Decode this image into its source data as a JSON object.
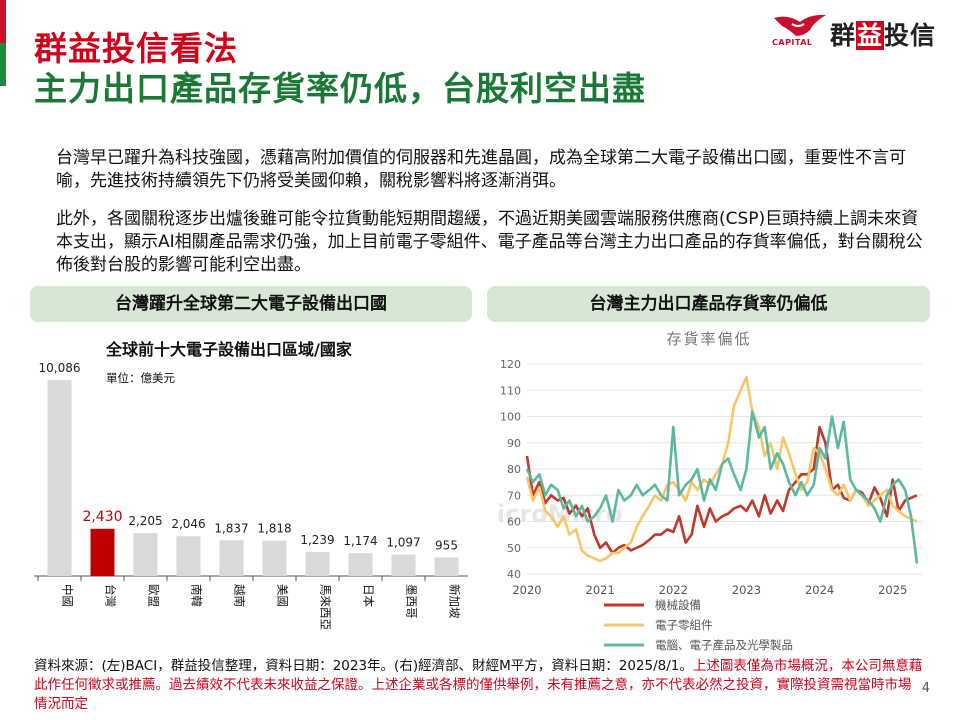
{
  "header": {
    "title_line1": "群益投信看法",
    "title_line2": "主力出口產品存貨率仍低，台股利空出盡",
    "logo_text_a": "群",
    "logo_text_b": "益",
    "logo_text_c": "投信",
    "logo_caption": "CAPITAL",
    "accent_colors": {
      "red": "#c8102e",
      "green": "#1e8a3c"
    }
  },
  "body": {
    "paragraph1": "台灣早已躍升為科技強國，憑藉高附加價值的伺服器和先進晶圓，成為全球第二大電子設備出口國，重要性不言可喻，先進技術持續領先下仍將受美國仰賴，關稅影響料將逐漸消弭。",
    "paragraph2": "此外，各國關稅逐步出爐後雖可能令拉貨動能短期間趨緩，不過近期美國雲端服務供應商(CSP)巨頭持續上調未來資本支出，顯示AI相關產品需求仍強，加上目前電子零組件、電子產品等台灣主力出口產品的存貨率偏低，對台關稅公佈後對台股的影響可能利空出盡。"
  },
  "left_panel": {
    "heading": "台灣躍升全球第二大電子設備出口國"
  },
  "right_panel": {
    "heading": "台灣主力出口產品存貨率仍偏低"
  },
  "chart_data": [
    {
      "type": "bar",
      "title": "全球前十大電子設備出口區域/國家",
      "subtitle": "單位：億美元",
      "categories": [
        "中國",
        "台灣",
        "歐盟",
        "南韓",
        "越南",
        "美國",
        "馬來西亞",
        "日本",
        "墨西哥",
        "新加坡"
      ],
      "values": [
        10086,
        2430,
        2205,
        2046,
        1837,
        1818,
        1239,
        1174,
        1097,
        955
      ],
      "value_labels": [
        "10,086",
        "2,430",
        "2,205",
        "2,046",
        "1,837",
        "1,818",
        "1,239",
        "1,174",
        "1,097",
        "955"
      ],
      "highlight_index": 1,
      "colors": {
        "bar": "#d9d9d9",
        "highlight": "#c00000",
        "highlight_label": "#c00000"
      },
      "ylim": [
        0,
        10086
      ]
    },
    {
      "type": "line",
      "title": "存貨率偏低",
      "xlabel": "",
      "ylabel": "",
      "ylim": [
        40,
        120
      ],
      "y_ticks": [
        40,
        50,
        60,
        70,
        80,
        90,
        100,
        110,
        120
      ],
      "x_range": [
        2020.0,
        2025.4
      ],
      "x_ticks": [
        2020,
        2021,
        2022,
        2023,
        2024,
        2025
      ],
      "grid": true,
      "watermark": "icroMicro",
      "legend_position": "bottom",
      "series": [
        {
          "name": "機械設備",
          "color": "#c0392b",
          "x": [
            2020.0,
            2020.08,
            2020.17,
            2020.25,
            2020.33,
            2020.42,
            2020.5,
            2020.58,
            2020.67,
            2020.75,
            2020.83,
            2020.92,
            2021.0,
            2021.08,
            2021.17,
            2021.25,
            2021.33,
            2021.42,
            2021.5,
            2021.58,
            2021.67,
            2021.75,
            2021.83,
            2021.92,
            2022.0,
            2022.08,
            2022.17,
            2022.25,
            2022.33,
            2022.42,
            2022.5,
            2022.58,
            2022.67,
            2022.75,
            2022.83,
            2022.92,
            2023.0,
            2023.08,
            2023.17,
            2023.25,
            2023.33,
            2023.42,
            2023.5,
            2023.58,
            2023.67,
            2023.75,
            2023.83,
            2023.92,
            2024.0,
            2024.08,
            2024.17,
            2024.25,
            2024.33,
            2024.42,
            2024.5,
            2024.58,
            2024.67,
            2024.75,
            2024.83,
            2024.92,
            2025.0,
            2025.08,
            2025.17,
            2025.25,
            2025.33
          ],
          "y": [
            85,
            70,
            75,
            67,
            70,
            68,
            69,
            63,
            66,
            62,
            65,
            55,
            50,
            52,
            48,
            50,
            51,
            49,
            50,
            51,
            53,
            55,
            55,
            57,
            56,
            62,
            52,
            55,
            66,
            58,
            65,
            60,
            62,
            63,
            65,
            66,
            64,
            68,
            62,
            70,
            63,
            68,
            64,
            72,
            75,
            78,
            78,
            80,
            96,
            90,
            72,
            74,
            69,
            68,
            72,
            71,
            67,
            73,
            69,
            62,
            76,
            64,
            68,
            69,
            70
          ]
        },
        {
          "name": "電子零組件",
          "color": "#f5c76b",
          "x": [
            2020.0,
            2020.08,
            2020.17,
            2020.25,
            2020.33,
            2020.42,
            2020.5,
            2020.58,
            2020.67,
            2020.75,
            2020.83,
            2020.92,
            2021.0,
            2021.08,
            2021.17,
            2021.25,
            2021.33,
            2021.42,
            2021.5,
            2021.58,
            2021.67,
            2021.75,
            2021.83,
            2021.92,
            2022.0,
            2022.08,
            2022.17,
            2022.25,
            2022.33,
            2022.42,
            2022.5,
            2022.58,
            2022.67,
            2022.75,
            2022.83,
            2022.92,
            2023.0,
            2023.08,
            2023.17,
            2023.25,
            2023.33,
            2023.42,
            2023.5,
            2023.58,
            2023.67,
            2023.75,
            2023.83,
            2023.92,
            2024.0,
            2024.08,
            2024.17,
            2024.25,
            2024.33,
            2024.42,
            2024.5,
            2024.58,
            2024.67,
            2024.75,
            2024.83,
            2024.92,
            2025.0,
            2025.08,
            2025.17,
            2025.25,
            2025.33
          ],
          "y": [
            77,
            68,
            73,
            64,
            62,
            58,
            62,
            55,
            57,
            49,
            47,
            46,
            45,
            46,
            48,
            48,
            50,
            52,
            58,
            62,
            66,
            70,
            68,
            74,
            75,
            72,
            68,
            75,
            72,
            76,
            74,
            78,
            82,
            90,
            104,
            110,
            115,
            102,
            96,
            85,
            90,
            80,
            92,
            86,
            78,
            72,
            75,
            88,
            86,
            80,
            72,
            70,
            74,
            68,
            72,
            70,
            66,
            68,
            70,
            72,
            66,
            64,
            62,
            61,
            60
          ]
        },
        {
          "name": "電腦、電子產品及光學製品",
          "color": "#5cb8a0",
          "x": [
            2020.0,
            2020.08,
            2020.17,
            2020.25,
            2020.33,
            2020.42,
            2020.5,
            2020.58,
            2020.67,
            2020.75,
            2020.83,
            2020.92,
            2021.0,
            2021.08,
            2021.17,
            2021.25,
            2021.33,
            2021.42,
            2021.5,
            2021.58,
            2021.67,
            2021.75,
            2021.83,
            2021.92,
            2022.0,
            2022.08,
            2022.17,
            2022.25,
            2022.33,
            2022.42,
            2022.5,
            2022.58,
            2022.67,
            2022.75,
            2022.83,
            2022.92,
            2023.0,
            2023.08,
            2023.17,
            2023.25,
            2023.33,
            2023.42,
            2023.5,
            2023.58,
            2023.67,
            2023.75,
            2023.83,
            2023.92,
            2024.0,
            2024.08,
            2024.17,
            2024.25,
            2024.33,
            2024.42,
            2024.5,
            2024.58,
            2024.67,
            2024.75,
            2024.83,
            2024.92,
            2025.0,
            2025.08,
            2025.17,
            2025.25,
            2025.33
          ],
          "y": [
            80,
            75,
            78,
            70,
            74,
            72,
            65,
            68,
            62,
            66,
            60,
            62,
            65,
            70,
            60,
            72,
            68,
            70,
            74,
            70,
            72,
            74,
            70,
            68,
            96,
            70,
            74,
            76,
            80,
            68,
            76,
            72,
            82,
            84,
            78,
            72,
            80,
            102,
            92,
            96,
            80,
            86,
            82,
            75,
            70,
            75,
            70,
            74,
            88,
            84,
            100,
            88,
            98,
            76,
            72,
            70,
            68,
            65,
            60,
            70,
            74,
            76,
            72,
            62,
            44
          ]
        }
      ]
    }
  ],
  "footer": {
    "source_text": "資料來源：(左)BACI，群益投信整理，資料日期：2023年。(右)經濟部、財經M平方，資料日期：2025/8/1。",
    "disclaimer_text": "上述圖表僅為市場概況，本公司無意藉此作任何徵求或推薦。過去績效不代表未來收益之保證。上述企業或各標的僅供舉例，未有推薦之意，亦不代表必然之投資，實際投資需視當時市場情況而定",
    "page_number": "4"
  }
}
